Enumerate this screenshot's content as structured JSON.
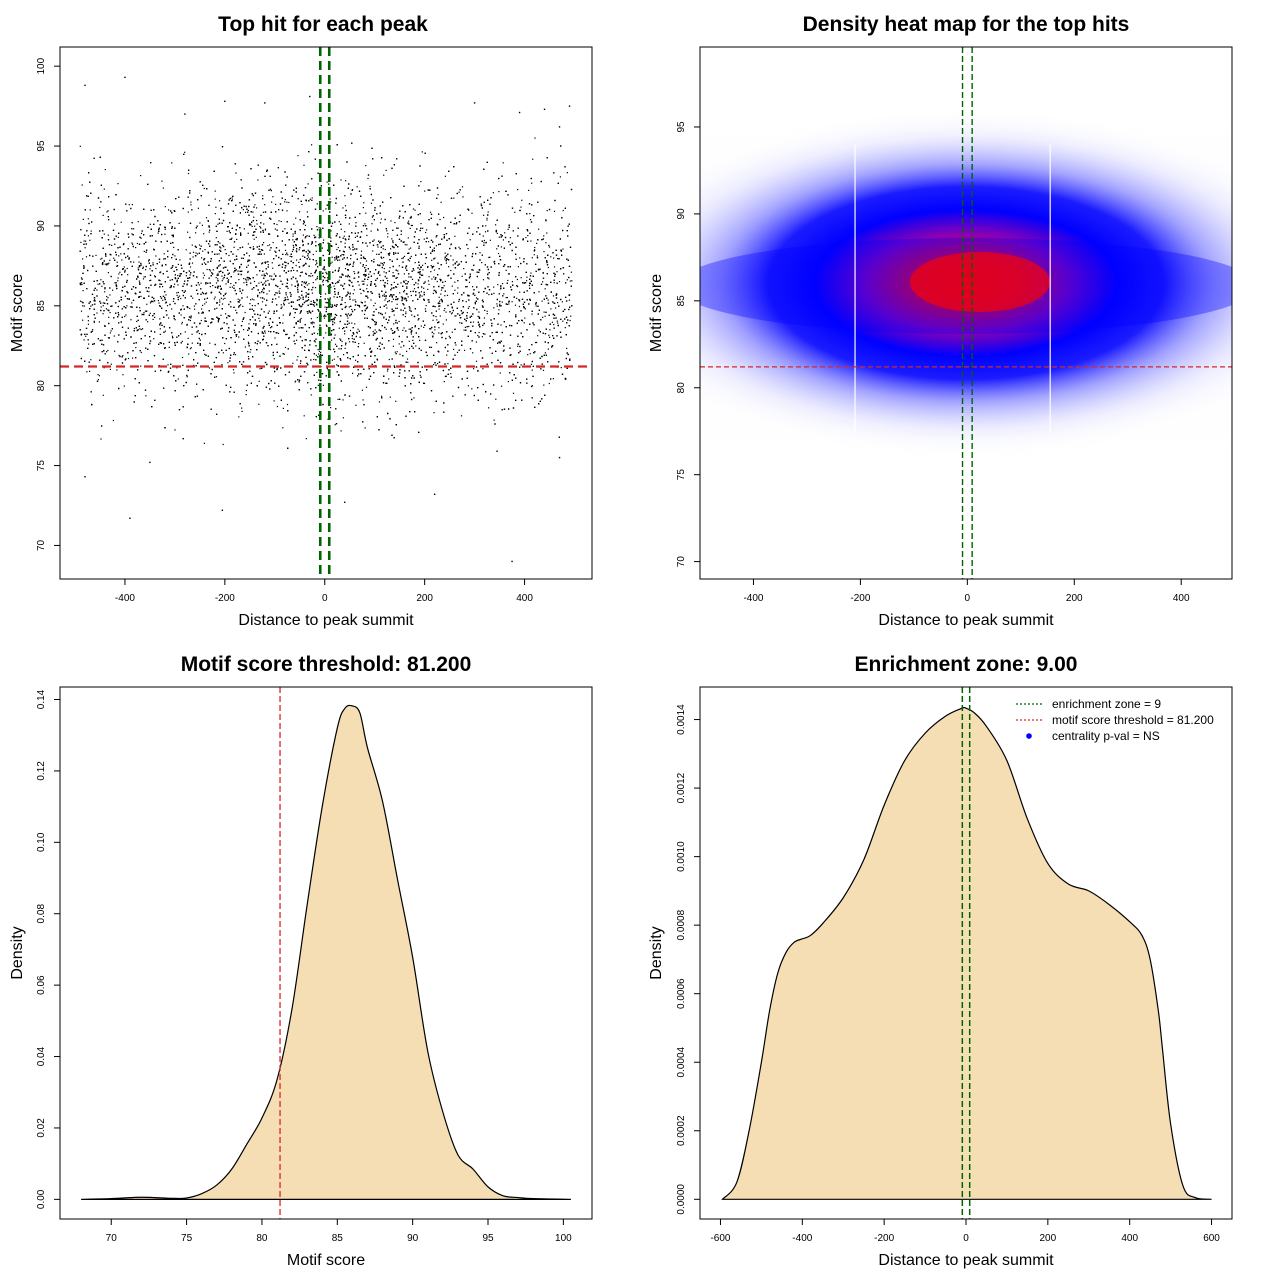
{
  "colors": {
    "threshold_line": "#d62728",
    "zone_line": "#006400",
    "density_fill": "#f5deb3",
    "points": "#000000",
    "heat_low": "#ffffff",
    "heat_mid": "#0000ff",
    "heat_high": "#ff0000",
    "legend_point": "#0000ff"
  },
  "chart_data": [
    {
      "type": "scatter",
      "title": "Top hit for each peak",
      "xlabel": "Distance to peak summit",
      "ylabel": "Motif score",
      "xlim": [
        -530,
        535
      ],
      "ylim": [
        67.9,
        101.2
      ],
      "xticks": [
        -400,
        -200,
        0,
        200,
        400
      ],
      "xtick_labels": [
        "-400",
        "-200",
        "0",
        "200",
        "400"
      ],
      "yticks": [
        70,
        75,
        80,
        85,
        90,
        95,
        100
      ],
      "ytick_labels": [
        "70",
        "75",
        "80",
        "85",
        "90",
        "95",
        "100"
      ],
      "distribution": {
        "x_range": [
          -490,
          495
        ],
        "n_points": 9000,
        "y_mean": 86.0,
        "y_sd": 3.3,
        "x_central_sd": 160
      },
      "outliers": [
        {
          "x": -400,
          "y": 99.3
        },
        {
          "x": -480,
          "y": 98.8
        },
        {
          "x": -30,
          "y": 98.1
        },
        {
          "x": -200,
          "y": 97.8
        },
        {
          "x": -120,
          "y": 97.7
        },
        {
          "x": 300,
          "y": 97.7
        },
        {
          "x": 490,
          "y": 97.5
        },
        {
          "x": 440,
          "y": 97.3
        },
        {
          "x": -280,
          "y": 97.0
        },
        {
          "x": 390,
          "y": 97.1
        },
        {
          "x": 470,
          "y": 96.2
        },
        {
          "x": -480,
          "y": 74.3
        },
        {
          "x": -350,
          "y": 75.2
        },
        {
          "x": -390,
          "y": 71.7
        },
        {
          "x": -205,
          "y": 72.2
        },
        {
          "x": 220,
          "y": 73.2
        },
        {
          "x": 40,
          "y": 72.7
        },
        {
          "x": 345,
          "y": 75.9
        },
        {
          "x": 470,
          "y": 75.5
        },
        {
          "x": 375,
          "y": 69.0
        }
      ],
      "threshold_y": 81.2,
      "zone_x": [
        -9,
        9
      ]
    },
    {
      "type": "heatmap",
      "title": "Density heat map for the top hits",
      "xlabel": "Distance to peak summit",
      "ylabel": "Motif score",
      "xlim": [
        -500,
        495
      ],
      "ylim": [
        69.0,
        99.6
      ],
      "xticks": [
        -400,
        -200,
        0,
        200,
        400
      ],
      "xtick_labels": [
        "-400",
        "-200",
        "0",
        "200",
        "400"
      ],
      "yticks": [
        70,
        75,
        80,
        85,
        90,
        95
      ],
      "ytick_labels": [
        "70",
        "75",
        "80",
        "85",
        "90",
        "95"
      ],
      "density_center": {
        "x": 30,
        "y": 86.0
      },
      "threshold_y": 81.2,
      "zone_x": [
        -9,
        9
      ],
      "white_seams_x": [
        -210,
        155
      ]
    },
    {
      "type": "area",
      "title": "Motif score threshold: 81.200",
      "xlabel": "Motif score",
      "ylabel": "Density",
      "xlim": [
        66.6,
        101.9
      ],
      "ylim": [
        -0.0055,
        0.1435
      ],
      "xticks": [
        70,
        75,
        80,
        85,
        90,
        95,
        100
      ],
      "xtick_labels": [
        "70",
        "75",
        "80",
        "85",
        "90",
        "95",
        "100"
      ],
      "yticks": [
        0,
        0.02,
        0.04,
        0.06,
        0.08,
        0.1,
        0.12,
        0.14
      ],
      "ytick_labels": [
        "0.00",
        "0.02",
        "0.04",
        "0.06",
        "0.08",
        "0.10",
        "0.12",
        "0.14"
      ],
      "x": [
        68,
        70,
        72,
        74,
        75,
        76,
        77,
        78,
        79,
        80,
        81,
        82,
        83,
        84,
        85,
        85.5,
        86,
        86.5,
        87,
        88,
        89,
        90,
        91,
        92,
        93,
        94,
        95,
        96,
        97,
        98,
        100.5
      ],
      "y": [
        0,
        0.0002,
        0.0006,
        0.0003,
        0.0004,
        0.0016,
        0.004,
        0.0085,
        0.0155,
        0.0228,
        0.0335,
        0.0535,
        0.0825,
        0.11,
        0.132,
        0.1375,
        0.1382,
        0.1362,
        0.1265,
        0.1115,
        0.0895,
        0.0678,
        0.0415,
        0.0245,
        0.0125,
        0.0085,
        0.0035,
        0.001,
        0.0005,
        0.0002,
        0
      ],
      "threshold_x": 81.2
    },
    {
      "type": "area",
      "title": "Enrichment zone: 9.00",
      "xlabel": "Distance to peak summit",
      "ylabel": "Density",
      "xlim": [
        -650,
        650
      ],
      "ylim": [
        -5.75e-05,
        0.001495
      ],
      "xticks": [
        -600,
        -400,
        -200,
        0,
        200,
        400,
        600
      ],
      "xtick_labels": [
        "-600",
        "-400",
        "-200",
        "0",
        "200",
        "400",
        "600"
      ],
      "yticks": [
        0,
        0.0002,
        0.0004,
        0.0006,
        0.0008,
        0.001,
        0.0012,
        0.0014
      ],
      "ytick_labels": [
        "0.0000",
        "0.0002",
        "0.0004",
        "0.0006",
        "0.0008",
        "0.0010",
        "0.0012",
        "0.0014"
      ],
      "x": [
        -595,
        -560,
        -530,
        -500,
        -480,
        -460,
        -440,
        -420,
        -400,
        -380,
        -350,
        -300,
        -250,
        -200,
        -150,
        -100,
        -50,
        -10,
        0,
        20,
        50,
        100,
        150,
        200,
        250,
        300,
        350,
        400,
        430,
        450,
        470,
        480,
        500,
        530,
        560,
        600
      ],
      "y": [
        0,
        5e-05,
        0.0002,
        0.0004,
        0.00055,
        0.00066,
        0.00072,
        0.00075,
        0.00076,
        0.00077,
        0.000805,
        0.00088,
        0.00099,
        0.00115,
        0.00128,
        0.00136,
        0.00141,
        0.001433,
        0.001433,
        0.00142,
        0.00138,
        0.00128,
        0.00111,
        0.00098,
        0.00092,
        0.0009,
        0.00086,
        0.00081,
        0.00077,
        0.0007,
        0.00055,
        0.00044,
        0.00022,
        4e-05,
        5e-06,
        0
      ],
      "zone_x": [
        -9,
        9
      ],
      "legend": [
        {
          "label": "enrichment zone = 9",
          "marker": "dotted-line",
          "color": "#006400"
        },
        {
          "label": "motif score threshold = 81.200",
          "marker": "dotted-line",
          "color": "#d62728"
        },
        {
          "label": "centrality p-val = NS",
          "marker": "dot",
          "color": "#0000ff"
        }
      ],
      "legend_position": "top-right"
    }
  ]
}
